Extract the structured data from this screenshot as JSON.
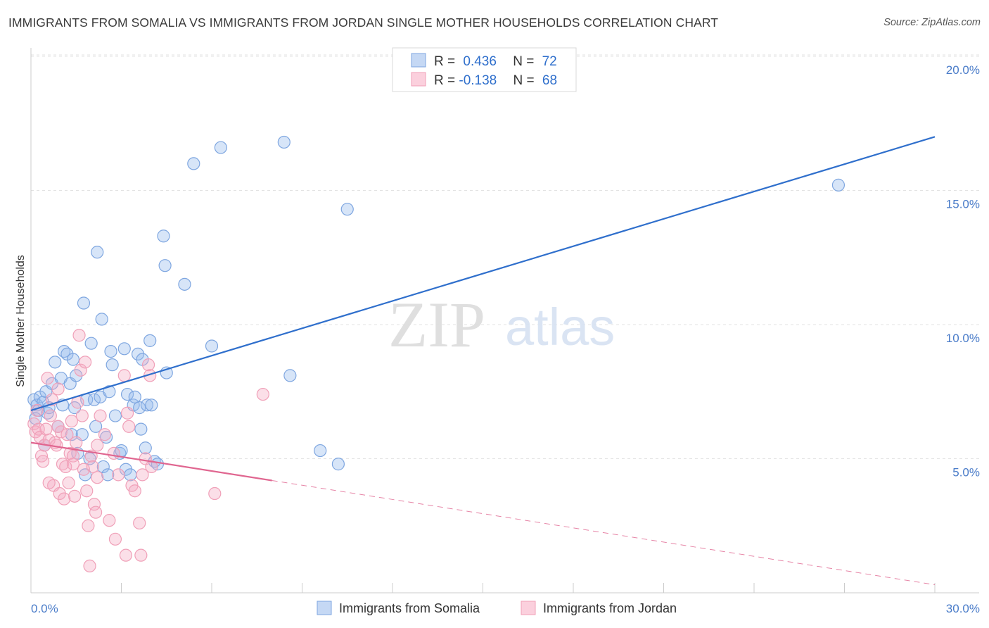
{
  "header": {
    "title": "IMMIGRANTS FROM SOMALIA VS IMMIGRANTS FROM JORDAN SINGLE MOTHER HOUSEHOLDS CORRELATION CHART",
    "source": "Source: ZipAtlas.com"
  },
  "watermark": {
    "zip": "ZIP",
    "atlas": "atlas"
  },
  "chart_data": {
    "type": "scatter",
    "title": "IMMIGRANTS FROM SOMALIA VS IMMIGRANTS FROM JORDAN SINGLE MOTHER HOUSEHOLDS CORRELATION CHART",
    "xlabel": "",
    "ylabel": "Single Mother Households",
    "xlim": [
      0,
      30
    ],
    "ylim": [
      0,
      20
    ],
    "x_tick_labels": [
      "0.0%",
      "30.0%"
    ],
    "y_ticks": [
      {
        "value": 5,
        "label": "5.0%"
      },
      {
        "value": 10,
        "label": "10.0%"
      },
      {
        "value": 15,
        "label": "15.0%"
      },
      {
        "value": 20,
        "label": "20.0%"
      }
    ],
    "grid": true,
    "legend_position": "top-center",
    "series": [
      {
        "name": "Immigrants from Somalia",
        "color": "#7ea6e0",
        "line_color": "#2f6fcc",
        "r": "0.436",
        "n": "72",
        "trend": {
          "x0": 0.0,
          "y0": 6.8,
          "x1": 30.0,
          "y1": 17.0,
          "solid_to": 30.0
        },
        "points": [
          [
            0.1,
            7.2
          ],
          [
            0.2,
            7.0
          ],
          [
            0.25,
            6.8
          ],
          [
            0.3,
            7.3
          ],
          [
            0.4,
            7.1
          ],
          [
            0.45,
            5.5
          ],
          [
            0.5,
            7.5
          ],
          [
            0.55,
            6.7
          ],
          [
            0.6,
            6.9
          ],
          [
            0.7,
            7.8
          ],
          [
            0.8,
            8.6
          ],
          [
            0.9,
            6.2
          ],
          [
            1.0,
            8.0
          ],
          [
            1.05,
            7.0
          ],
          [
            1.1,
            9.0
          ],
          [
            1.2,
            8.9
          ],
          [
            1.3,
            7.8
          ],
          [
            1.35,
            5.9
          ],
          [
            1.4,
            8.7
          ],
          [
            1.5,
            8.1
          ],
          [
            1.45,
            6.9
          ],
          [
            1.55,
            5.2
          ],
          [
            1.7,
            5.9
          ],
          [
            1.75,
            10.8
          ],
          [
            1.8,
            4.4
          ],
          [
            1.85,
            7.2
          ],
          [
            1.95,
            5.0
          ],
          [
            2.0,
            9.3
          ],
          [
            2.1,
            7.2
          ],
          [
            2.15,
            6.2
          ],
          [
            2.2,
            12.7
          ],
          [
            2.3,
            7.3
          ],
          [
            2.35,
            10.2
          ],
          [
            2.4,
            4.7
          ],
          [
            2.5,
            5.8
          ],
          [
            2.55,
            4.4
          ],
          [
            2.6,
            7.5
          ],
          [
            2.65,
            9.0
          ],
          [
            2.7,
            8.5
          ],
          [
            2.8,
            6.6
          ],
          [
            2.95,
            5.2
          ],
          [
            3.0,
            5.3
          ],
          [
            3.1,
            9.1
          ],
          [
            3.15,
            4.6
          ],
          [
            3.2,
            7.4
          ],
          [
            3.3,
            4.4
          ],
          [
            3.4,
            7.0
          ],
          [
            3.45,
            7.3
          ],
          [
            3.55,
            8.9
          ],
          [
            3.6,
            6.9
          ],
          [
            3.65,
            6.1
          ],
          [
            3.7,
            8.7
          ],
          [
            3.8,
            5.4
          ],
          [
            3.85,
            7.0
          ],
          [
            3.95,
            9.4
          ],
          [
            4.0,
            7.0
          ],
          [
            4.1,
            4.9
          ],
          [
            4.2,
            4.8
          ],
          [
            4.4,
            13.3
          ],
          [
            4.45,
            12.2
          ],
          [
            4.5,
            8.2
          ],
          [
            5.1,
            11.5
          ],
          [
            5.4,
            16.0
          ],
          [
            6.0,
            9.2
          ],
          [
            6.3,
            16.6
          ],
          [
            8.4,
            16.8
          ],
          [
            8.6,
            8.1
          ],
          [
            9.6,
            5.3
          ],
          [
            10.5,
            14.3
          ],
          [
            10.2,
            4.8
          ],
          [
            26.8,
            15.2
          ],
          [
            0.15,
            6.5
          ]
        ]
      },
      {
        "name": "Immigrants from Jordan",
        "color": "#f0a0b8",
        "line_color": "#e06690",
        "r": "-0.138",
        "n": "68",
        "trend": {
          "x0": 0.0,
          "y0": 5.6,
          "x1": 30.0,
          "y1": 0.3,
          "solid_to": 8.0
        },
        "points": [
          [
            0.1,
            6.3
          ],
          [
            0.15,
            6.0
          ],
          [
            0.2,
            6.8
          ],
          [
            0.25,
            6.1
          ],
          [
            0.3,
            5.8
          ],
          [
            0.35,
            5.1
          ],
          [
            0.4,
            4.9
          ],
          [
            0.45,
            5.5
          ],
          [
            0.5,
            6.1
          ],
          [
            0.55,
            8.0
          ],
          [
            0.6,
            5.7
          ],
          [
            0.65,
            6.6
          ],
          [
            0.7,
            7.2
          ],
          [
            0.75,
            4.0
          ],
          [
            0.8,
            5.6
          ],
          [
            0.85,
            5.5
          ],
          [
            0.9,
            7.6
          ],
          [
            0.95,
            3.7
          ],
          [
            1.0,
            6.0
          ],
          [
            1.05,
            4.8
          ],
          [
            1.1,
            3.5
          ],
          [
            1.15,
            4.7
          ],
          [
            1.2,
            5.9
          ],
          [
            1.25,
            4.1
          ],
          [
            1.3,
            5.2
          ],
          [
            1.35,
            6.4
          ],
          [
            1.4,
            5.1
          ],
          [
            1.45,
            3.6
          ],
          [
            1.5,
            5.6
          ],
          [
            1.55,
            7.1
          ],
          [
            1.6,
            9.6
          ],
          [
            1.65,
            8.3
          ],
          [
            1.7,
            6.6
          ],
          [
            1.75,
            4.6
          ],
          [
            1.8,
            8.6
          ],
          [
            1.85,
            3.8
          ],
          [
            1.9,
            2.5
          ],
          [
            1.95,
            1.0
          ],
          [
            2.0,
            5.1
          ],
          [
            2.05,
            4.7
          ],
          [
            2.1,
            3.3
          ],
          [
            2.15,
            3.0
          ],
          [
            2.2,
            4.3
          ],
          [
            2.3,
            6.6
          ],
          [
            2.45,
            5.9
          ],
          [
            2.6,
            2.7
          ],
          [
            2.75,
            5.2
          ],
          [
            2.8,
            2.0
          ],
          [
            2.9,
            4.4
          ],
          [
            3.1,
            8.1
          ],
          [
            3.15,
            1.4
          ],
          [
            3.2,
            6.7
          ],
          [
            3.25,
            6.2
          ],
          [
            3.35,
            4.0
          ],
          [
            3.45,
            3.8
          ],
          [
            3.6,
            2.6
          ],
          [
            3.65,
            1.4
          ],
          [
            3.7,
            4.4
          ],
          [
            3.8,
            5.0
          ],
          [
            3.9,
            8.5
          ],
          [
            3.95,
            8.1
          ],
          [
            4.0,
            4.7
          ],
          [
            2.2,
            5.5
          ],
          [
            1.4,
            4.8
          ],
          [
            0.9,
            6.2
          ],
          [
            0.6,
            4.1
          ],
          [
            7.7,
            7.4
          ],
          [
            6.1,
            3.7
          ]
        ]
      }
    ]
  }
}
